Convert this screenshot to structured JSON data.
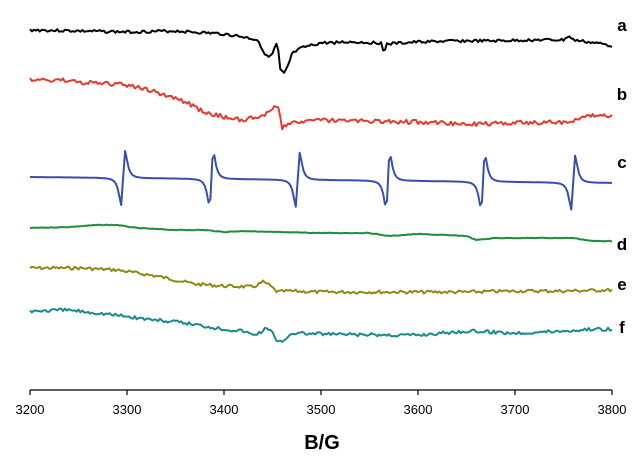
{
  "chart_data": {
    "type": "line",
    "title": "",
    "xlabel": "B/G",
    "ylabel": "",
    "xlim": [
      3200,
      3800
    ],
    "xticks": [
      3200,
      3300,
      3400,
      3500,
      3600,
      3700,
      3800
    ],
    "grid": false,
    "y_units": "arbitrary (stacked traces, no y-axis printed)",
    "series": [
      {
        "name": "a",
        "color": "#000000",
        "baseline": 30,
        "noise": 1.4,
        "points": [
          [
            3200,
            0
          ],
          [
            3300,
            2
          ],
          [
            3350,
            1
          ],
          [
            3400,
            4
          ],
          [
            3420,
            7
          ],
          [
            3435,
            10
          ],
          [
            3440,
            20
          ],
          [
            3445,
            28
          ],
          [
            3450,
            24
          ],
          [
            3455,
            12
          ],
          [
            3458,
            40
          ],
          [
            3462,
            44
          ],
          [
            3466,
            36
          ],
          [
            3470,
            24
          ],
          [
            3480,
            18
          ],
          [
            3500,
            13
          ],
          [
            3530,
            12
          ],
          [
            3562,
            13
          ],
          [
            3565,
            22
          ],
          [
            3568,
            14
          ],
          [
            3600,
            12
          ],
          [
            3640,
            11
          ],
          [
            3680,
            11
          ],
          [
            3720,
            10
          ],
          [
            3750,
            10
          ],
          [
            3755,
            6
          ],
          [
            3760,
            10
          ],
          [
            3790,
            14
          ],
          [
            3800,
            16
          ]
        ]
      },
      {
        "name": "b",
        "color": "#e03c31",
        "baseline": 80,
        "noise": 2.2,
        "points": [
          [
            3200,
            0
          ],
          [
            3230,
            0
          ],
          [
            3260,
            3
          ],
          [
            3300,
            5
          ],
          [
            3330,
            12
          ],
          [
            3360,
            22
          ],
          [
            3380,
            32
          ],
          [
            3400,
            37
          ],
          [
            3420,
            40
          ],
          [
            3440,
            36
          ],
          [
            3450,
            30
          ],
          [
            3455,
            24
          ],
          [
            3460,
            48
          ],
          [
            3465,
            44
          ],
          [
            3470,
            42
          ],
          [
            3500,
            40
          ],
          [
            3550,
            41
          ],
          [
            3600,
            42
          ],
          [
            3650,
            44
          ],
          [
            3700,
            43
          ],
          [
            3750,
            42
          ],
          [
            3790,
            34
          ],
          [
            3800,
            36
          ]
        ]
      },
      {
        "name": "c",
        "color": "#3a4eab",
        "baseline": 177,
        "noise": 0,
        "lines_ghz": [
          3296,
          3387,
          3476,
          3569,
          3667,
          3760
        ],
        "line_width_g": 3.5,
        "amplitude": 26
      },
      {
        "name": "d",
        "color": "#1e8c3a",
        "baseline": 228,
        "noise": 0.3,
        "points": [
          [
            3200,
            0
          ],
          [
            3240,
            -1
          ],
          [
            3270,
            -3
          ],
          [
            3290,
            -3
          ],
          [
            3310,
            0
          ],
          [
            3350,
            2
          ],
          [
            3380,
            2
          ],
          [
            3400,
            4
          ],
          [
            3420,
            3
          ],
          [
            3450,
            4
          ],
          [
            3500,
            5
          ],
          [
            3550,
            5
          ],
          [
            3570,
            8
          ],
          [
            3600,
            6
          ],
          [
            3650,
            8
          ],
          [
            3660,
            12
          ],
          [
            3680,
            10
          ],
          [
            3720,
            10
          ],
          [
            3760,
            10
          ],
          [
            3780,
            13
          ],
          [
            3800,
            13
          ]
        ]
      },
      {
        "name": "e",
        "color": "#8b8b1a",
        "baseline": 268,
        "noise": 1.6,
        "points": [
          [
            3200,
            0
          ],
          [
            3250,
            0
          ],
          [
            3290,
            2
          ],
          [
            3330,
            8
          ],
          [
            3370,
            16
          ],
          [
            3400,
            18
          ],
          [
            3430,
            19
          ],
          [
            3440,
            14
          ],
          [
            3445,
            16
          ],
          [
            3455,
            24
          ],
          [
            3465,
            23
          ],
          [
            3500,
            24
          ],
          [
            3550,
            24
          ],
          [
            3600,
            24
          ],
          [
            3650,
            24
          ],
          [
            3700,
            23
          ],
          [
            3750,
            23
          ],
          [
            3800,
            22
          ]
        ]
      },
      {
        "name": "f",
        "color": "#1a8a8a",
        "baseline": 311,
        "noise": 1.8,
        "points": [
          [
            3200,
            0
          ],
          [
            3240,
            -1
          ],
          [
            3280,
            3
          ],
          [
            3320,
            8
          ],
          [
            3360,
            12
          ],
          [
            3400,
            18
          ],
          [
            3420,
            20
          ],
          [
            3430,
            24
          ],
          [
            3440,
            20
          ],
          [
            3445,
            16
          ],
          [
            3450,
            22
          ],
          [
            3455,
            32
          ],
          [
            3460,
            30
          ],
          [
            3470,
            22
          ],
          [
            3500,
            23
          ],
          [
            3550,
            24
          ],
          [
            3600,
            24
          ],
          [
            3650,
            20
          ],
          [
            3700,
            22
          ],
          [
            3750,
            20
          ],
          [
            3780,
            18
          ],
          [
            3800,
            18
          ]
        ]
      }
    ]
  }
}
